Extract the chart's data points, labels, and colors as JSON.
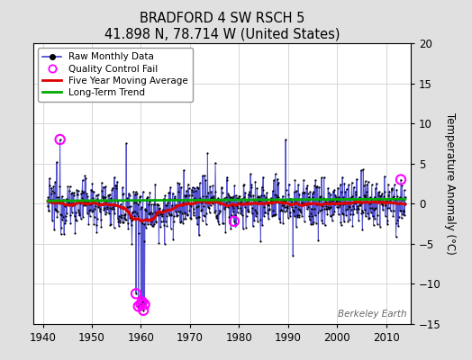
{
  "title": "BRADFORD 4 SW RSCH 5",
  "subtitle": "41.898 N, 78.714 W (United States)",
  "ylabel": "Temperature Anomaly (°C)",
  "watermark": "Berkeley Earth",
  "xlim": [
    1938,
    2015
  ],
  "ylim": [
    -15,
    20
  ],
  "yticks": [
    -15,
    -10,
    -5,
    0,
    5,
    10,
    15,
    20
  ],
  "xticks": [
    1940,
    1950,
    1960,
    1970,
    1980,
    1990,
    2000,
    2010
  ],
  "background_color": "#e0e0e0",
  "plot_background": "#ffffff",
  "raw_line_color": "#4040cc",
  "raw_dot_color": "#000000",
  "moving_avg_color": "#dd0000",
  "trend_color": "#00aa00",
  "qc_fail_color": "#ff00ff",
  "seed": 12345,
  "start_year": 1941,
  "end_year": 2013,
  "long_term_trend_intercept": 0.35,
  "long_term_trend_slope": 0.003
}
